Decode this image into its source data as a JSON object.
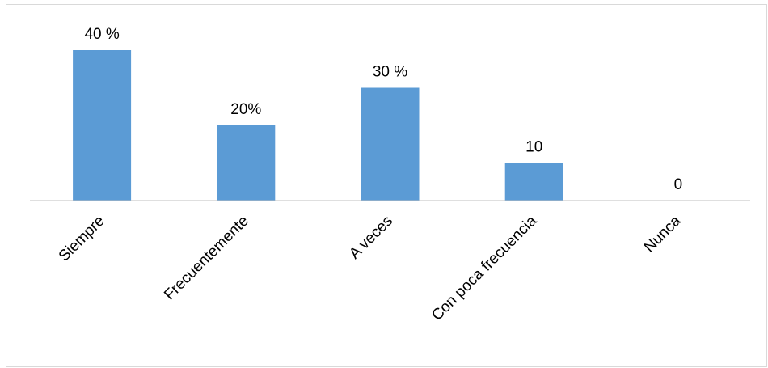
{
  "chart_data": {
    "type": "bar",
    "categories": [
      "Siempre",
      "Frecuentemente",
      "A veces",
      "Con poca frecuencia",
      "Nunca"
    ],
    "values": [
      40,
      20,
      30,
      10,
      0
    ],
    "data_labels": [
      "40 %",
      "20%",
      "30 %",
      "10",
      "0"
    ],
    "ylim": [
      0,
      40
    ],
    "bar_color": "#5b9bd5",
    "axis_color": "#bfbfbf",
    "grid": false,
    "legend": "none"
  }
}
